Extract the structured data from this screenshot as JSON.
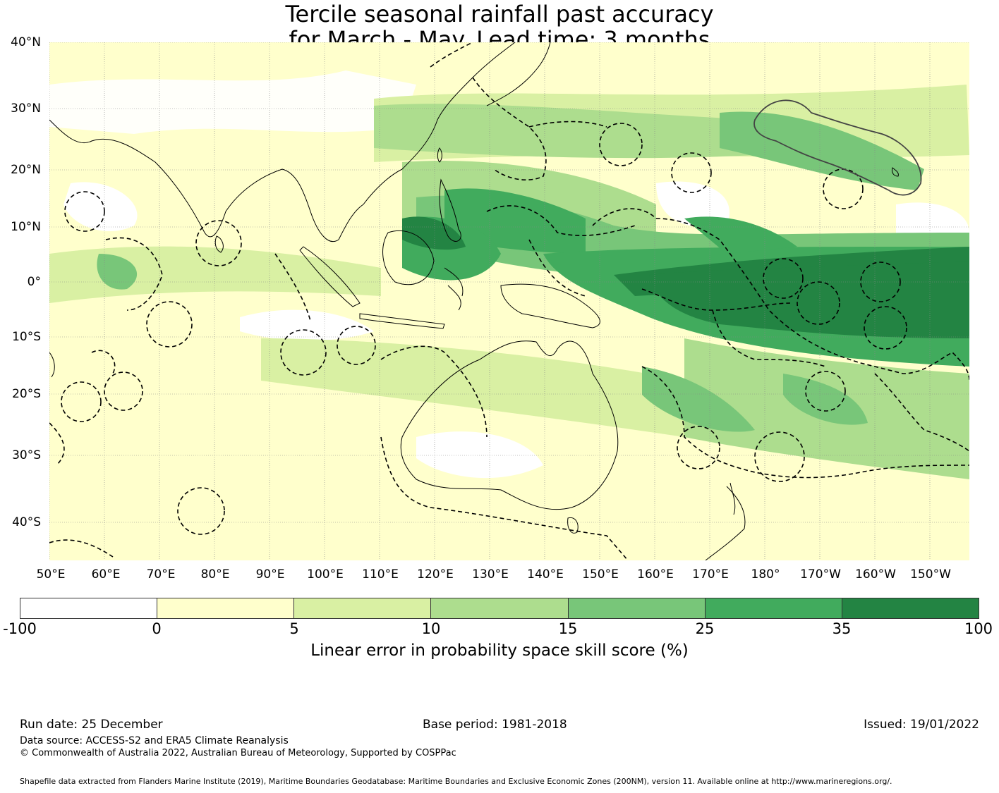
{
  "title": {
    "line1": "Tercile seasonal rainfall past accuracy",
    "line2": "for March - May. Lead time: 3 months"
  },
  "map": {
    "lat_labels": [
      "40°N",
      "30°N",
      "20°N",
      "10°N",
      "0°",
      "10°S",
      "20°S",
      "30°S",
      "40°S"
    ],
    "lon_labels": [
      "50°E",
      "60°E",
      "70°E",
      "80°E",
      "90°E",
      "100°E",
      "110°E",
      "120°E",
      "130°E",
      "140°E",
      "150°E",
      "160°E",
      "170°E",
      "180°",
      "170°W",
      "160°W",
      "150°W"
    ],
    "extent": {
      "lon_min": 50,
      "lon_max": 217,
      "lat_min": -46,
      "lat_max": 40
    },
    "colors": {
      "lt0": "#ffffff",
      "0-5": "#ffffcc",
      "5-10": "#d9f0a3",
      "10-15": "#addd8e",
      "15-25": "#78c679",
      "25-35": "#41ab5d",
      "35-100": "#238443"
    }
  },
  "colorbar": {
    "ticks": [
      "-100",
      "0",
      "5",
      "10",
      "15",
      "25",
      "35",
      "100"
    ],
    "colors": [
      "#ffffff",
      "#ffffcc",
      "#d9f0a3",
      "#addd8e",
      "#78c679",
      "#41ab5d",
      "#238443"
    ],
    "label": "Linear error in probability space skill score (%)"
  },
  "footer": {
    "run_date": "Run date: 25 December",
    "base_period": "Base period: 1981-2018",
    "issued": "Issued: 19/01/2022",
    "data_source": "Data source: ACCESS-S2 and ERA5 Climate Reanalysis",
    "copyright": "© Commonwealth of Australia 2022, Australian Bureau of Meteorology, Supported by COSPPac",
    "shapefile": "Shapefile data extracted from Flanders Marine Institute (2019), Maritime Boundaries Geodatabase: Maritime Boundaries and Exclusive Economic Zones (200NM), version 11. Available online at http://www.marineregions.org/."
  }
}
